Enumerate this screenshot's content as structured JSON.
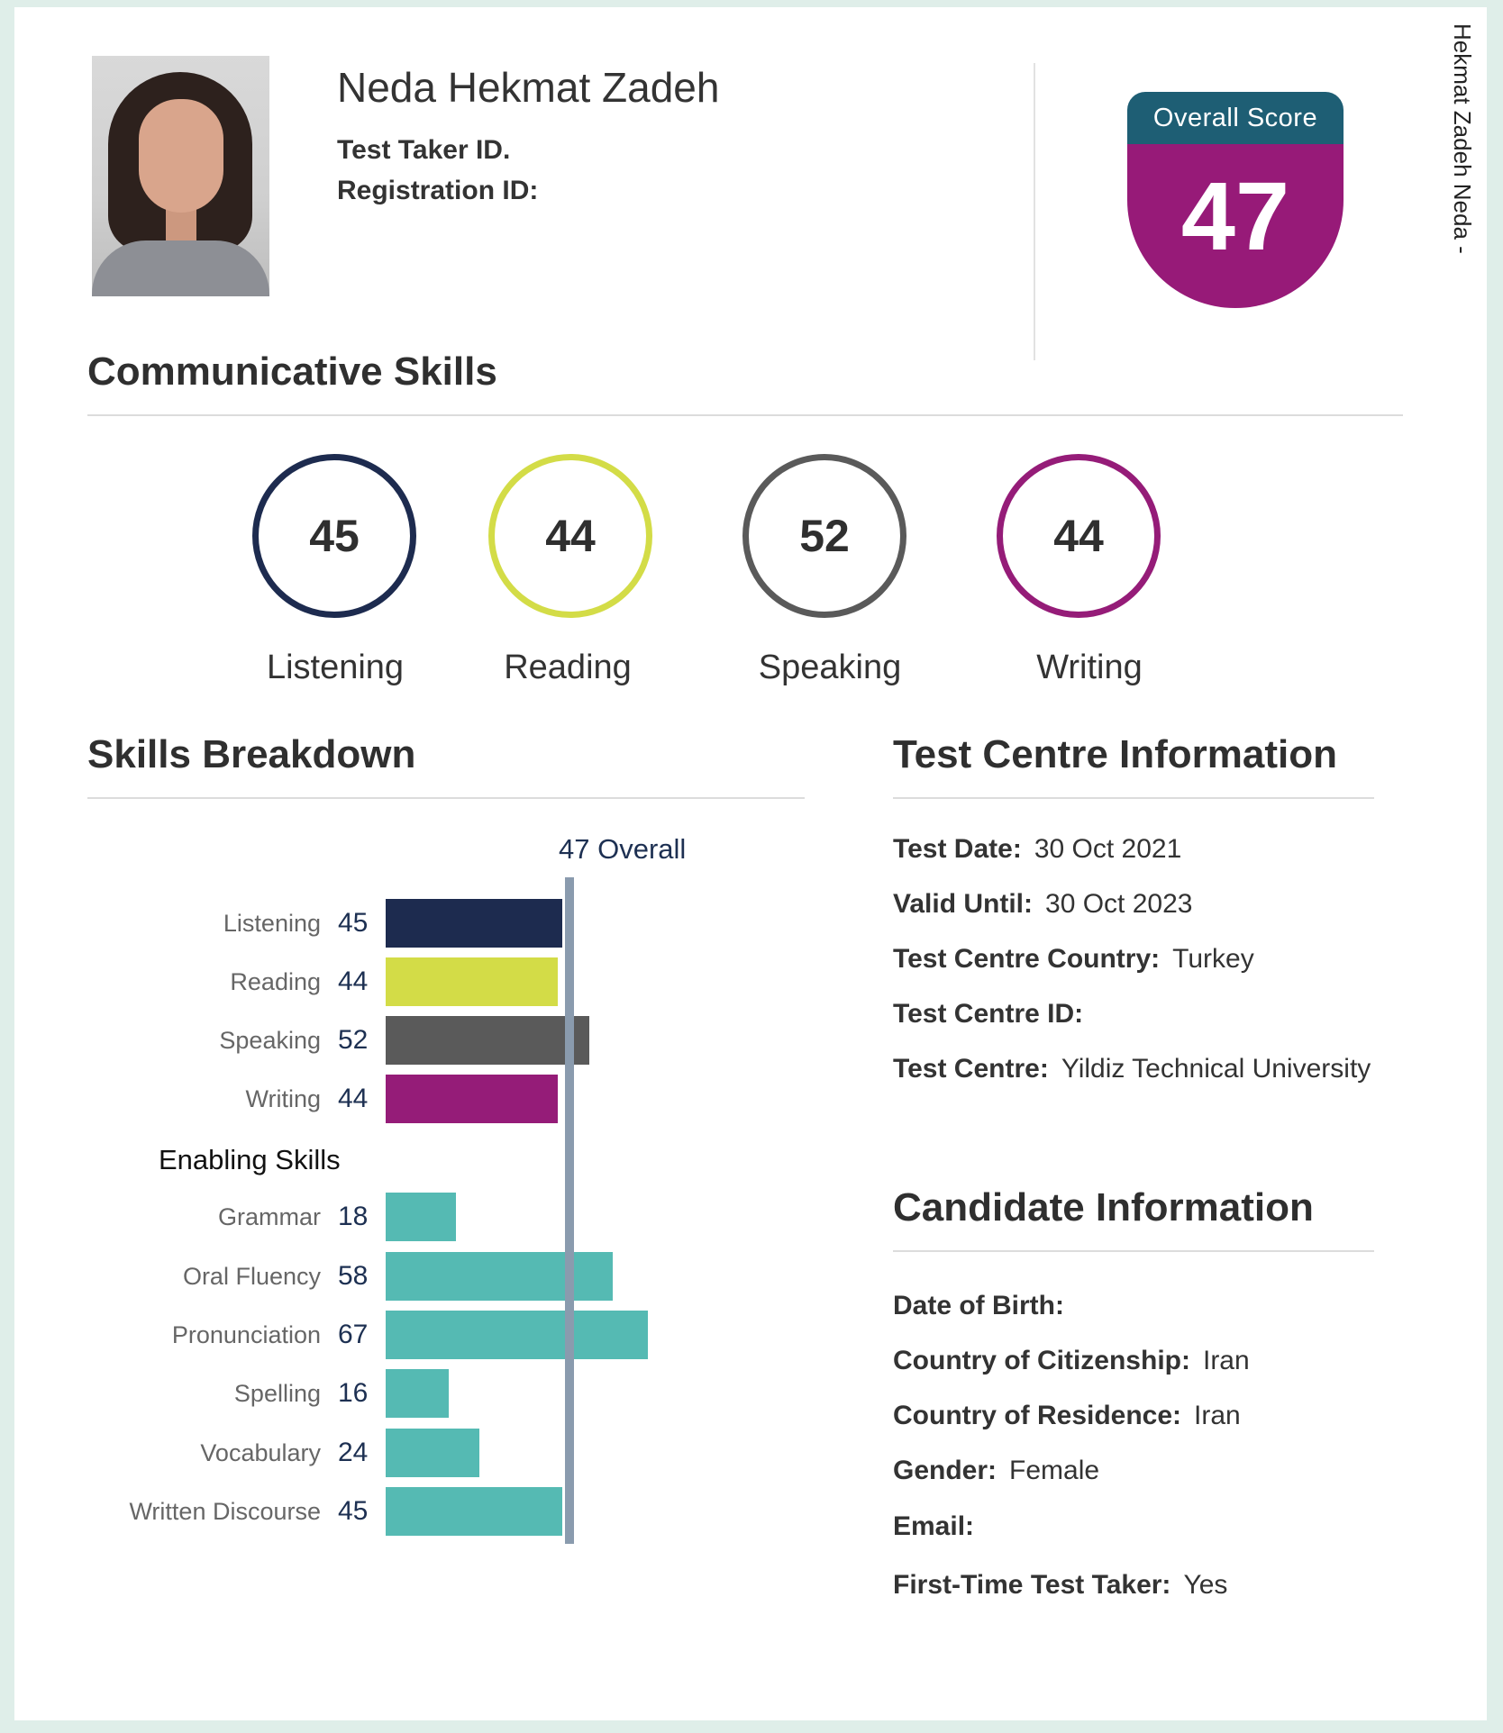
{
  "candidate": {
    "name": "Neda Hekmat Zadeh",
    "test_taker_id_label": "Test Taker ID.",
    "registration_id_label": "Registration ID:",
    "side_label": "Hekmat Zadeh Neda -"
  },
  "overall": {
    "label": "Overall Score",
    "score": "47"
  },
  "communicative": {
    "title": "Communicative Skills",
    "skills": [
      {
        "name": "Listening",
        "score": "45",
        "color": "#1d2b4f"
      },
      {
        "name": "Reading",
        "score": "44",
        "color": "#d3dc47"
      },
      {
        "name": "Speaking",
        "score": "52",
        "color": "#5a5a5a"
      },
      {
        "name": "Writing",
        "score": "44",
        "color": "#951c78"
      }
    ]
  },
  "breakdown": {
    "title": "Skills Breakdown",
    "overall_marker_label": "47 Overall",
    "enabling_title": "Enabling Skills"
  },
  "chart_data": {
    "type": "bar",
    "orientation": "horizontal",
    "title": "Skills Breakdown",
    "reference_line": {
      "value": 47,
      "label": "47 Overall"
    },
    "groups": [
      {
        "name": "",
        "categories": [
          "Listening",
          "Reading",
          "Speaking",
          "Writing"
        ],
        "values": [
          45,
          44,
          52,
          44
        ],
        "colors": [
          "#1d2b4f",
          "#d3dc47",
          "#5a5a5a",
          "#951c78"
        ]
      },
      {
        "name": "Enabling Skills",
        "categories": [
          "Grammar",
          "Oral Fluency",
          "Pronunciation",
          "Spelling",
          "Vocabulary",
          "Written Discourse"
        ],
        "values": [
          18,
          58,
          67,
          16,
          24,
          45
        ],
        "colors": [
          "#55bab3",
          "#55bab3",
          "#55bab3",
          "#55bab3",
          "#55bab3",
          "#55bab3"
        ]
      }
    ]
  },
  "test_centre": {
    "title": "Test Centre Information",
    "rows": [
      {
        "label": "Test Date:",
        "value": "30 Oct 2021"
      },
      {
        "label": "Valid Until:",
        "value": "30 Oct 2023"
      },
      {
        "label": "Test Centre Country:",
        "value": "Turkey"
      },
      {
        "label": "Test Centre ID:",
        "value": ""
      },
      {
        "label": "Test Centre:",
        "value": "Yildiz Technical University"
      }
    ]
  },
  "candidate_info": {
    "title": "Candidate Information",
    "rows": [
      {
        "label": "Date of Birth:",
        "value": ""
      },
      {
        "label": "Country of Citizenship:",
        "value": "Iran"
      },
      {
        "label": "Country of Residence:",
        "value": "Iran"
      },
      {
        "label": "Gender:",
        "value": "Female"
      },
      {
        "label": "Email:",
        "value": ""
      },
      {
        "label": "First-Time Test Taker:",
        "value": "Yes"
      }
    ]
  }
}
